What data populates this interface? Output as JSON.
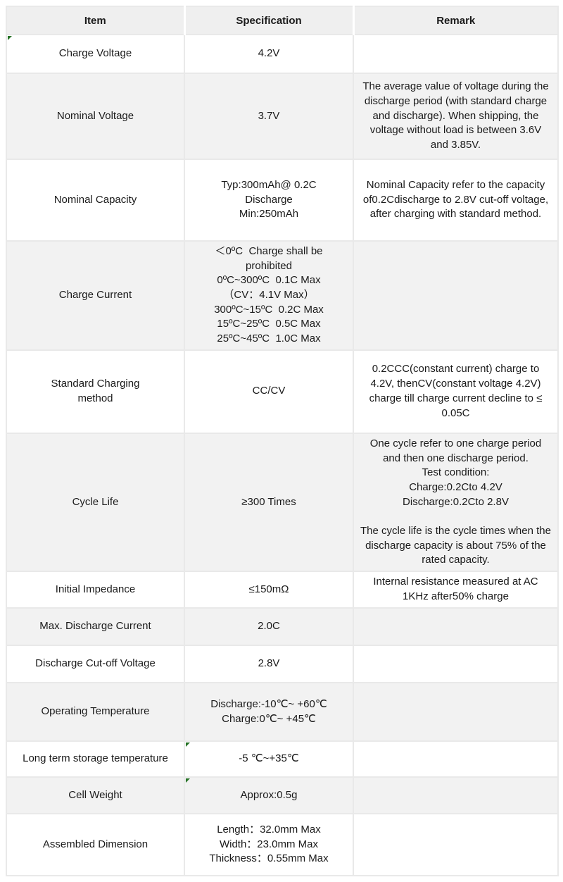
{
  "colors": {
    "header_bg": "#efefef",
    "stripe_bg": "#f2f2f2",
    "border": "#e9e9e9",
    "comment_marker_green": "#267326",
    "text": "#1a1a1a"
  },
  "table": {
    "columns": [
      "Item",
      "Specification",
      "Remark"
    ],
    "rows": [
      {
        "item": "Charge Voltage",
        "spec": "4.2V",
        "remark": ""
      },
      {
        "item": "Nominal Voltage",
        "spec": "3.7V",
        "remark": "The average value of voltage during the discharge period (with standard charge and discharge). When shipping, the voltage without load is between 3.6V and 3.85V."
      },
      {
        "item": "Nominal Capacity",
        "spec": "Typ:300mAh@ 0.2C\nDischarge\nMin:250mAh",
        "remark": "Nominal Capacity refer to the capacity of0.2Cdischarge to 2.8V cut-off voltage, after charging with standard method."
      },
      {
        "item": "Charge Current",
        "spec": "＜0ºC  Charge shall be prohibited\n0ºC~300ºC  0.1C Max\n（CV：4.1V Max）\n300ºC~15ºC  0.2C Max\n15ºC~25ºC  0.5C Max\n25ºC~45ºC  1.0C Max",
        "remark": ""
      },
      {
        "item": "Standard Charging\nmethod",
        "spec": "CC/CV",
        "remark": "0.2CCC(constant current) charge to 4.2V, thenCV(constant voltage 4.2V) charge till charge current decline to ≤ 0.05C"
      },
      {
        "item": "Cycle Life",
        "spec": "≥300 Times",
        "remark": "One cycle refer to one charge period and then one discharge period.\nTest condition:\nCharge:0.2Cto 4.2V\nDischarge:0.2Cto 2.8V\n\nThe cycle life is the cycle times when the discharge capacity is about 75% of the rated capacity."
      },
      {
        "item": "Initial Impedance",
        "spec": "≤150mΩ",
        "remark": "Internal resistance measured at AC 1KHz after50% charge"
      },
      {
        "item": "Max. Discharge Current",
        "spec": "2.0C",
        "remark": ""
      },
      {
        "item": "Discharge Cut-off Voltage",
        "spec": "2.8V",
        "remark": ""
      },
      {
        "item": "Operating Temperature",
        "spec": "Discharge:-10℃~ +60℃\nCharge:0℃~ +45℃",
        "remark": ""
      },
      {
        "item": "Long term storage temperature",
        "spec": "-5 ℃~+35℃",
        "remark": ""
      },
      {
        "item": "Cell Weight",
        "spec": "Approx:0.5g",
        "remark": ""
      },
      {
        "item": "Assembled Dimension",
        "spec": "Length：32.0mm Max\nWidth：23.0mm Max\nThickness：0.55mm Max",
        "remark": ""
      }
    ],
    "comment_markers": [
      {
        "row_index": 0,
        "column": "item"
      },
      {
        "row_index": 10,
        "column": "spec"
      },
      {
        "row_index": 11,
        "column": "spec"
      }
    ]
  }
}
